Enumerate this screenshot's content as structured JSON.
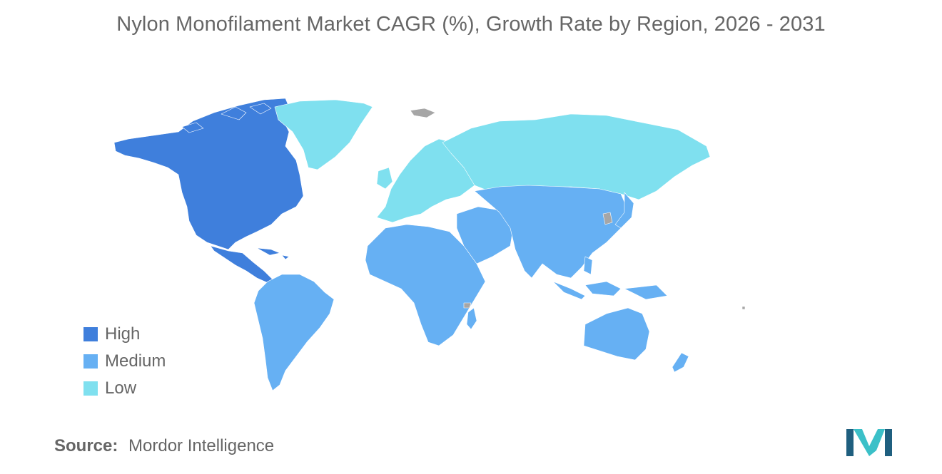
{
  "title": "Nylon Monofilament Market CAGR (%), Growth Rate by Region, 2026 - 2031",
  "colors": {
    "high": "#3f7fdc",
    "medium": "#66b0f3",
    "low": "#7fe0ef",
    "no_data": "#a6a6a6",
    "text": "#666666",
    "logo_dark": "#1f5f7f",
    "logo_light": "#3bc0c8"
  },
  "legend": [
    {
      "label": "High",
      "color_key": "high"
    },
    {
      "label": "Medium",
      "color_key": "medium"
    },
    {
      "label": "Low",
      "color_key": "low"
    }
  ],
  "regions": [
    {
      "name": "North America",
      "level": "High"
    },
    {
      "name": "South America",
      "level": "Medium"
    },
    {
      "name": "Europe",
      "level": "Low"
    },
    {
      "name": "Russia and Central Asia",
      "level": "Low"
    },
    {
      "name": "Middle East and Africa",
      "level": "Medium"
    },
    {
      "name": "Asia-Pacific",
      "level": "Medium"
    },
    {
      "name": "Oceania",
      "level": "Medium"
    }
  ],
  "source": {
    "label": "Source:",
    "value": "Mordor Intelligence"
  },
  "logo_icon": "mordor-intelligence-logo-icon"
}
